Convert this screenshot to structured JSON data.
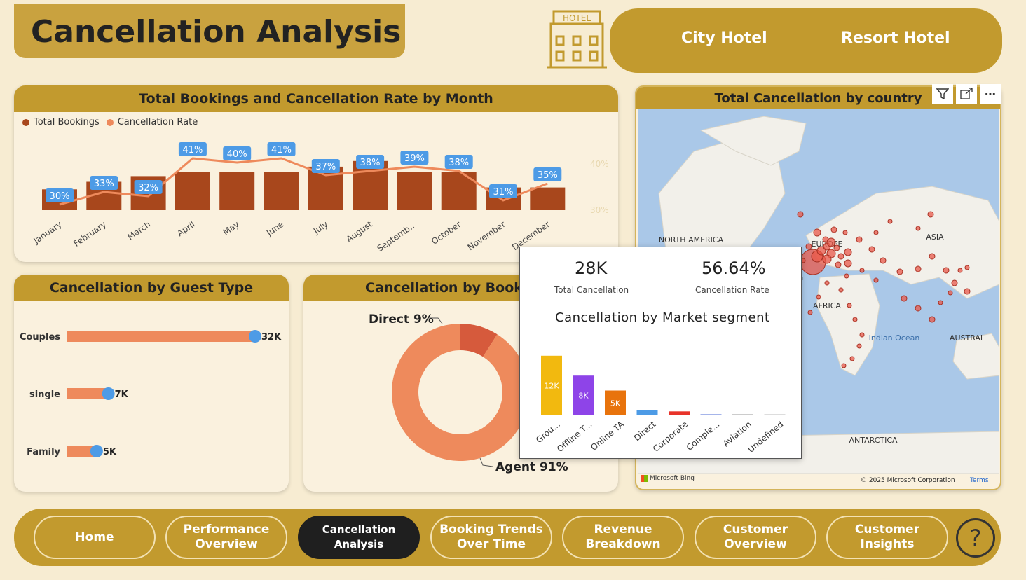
{
  "header": {
    "title": "Cancellation Analysis",
    "hotels": [
      "City Hotel",
      "Resort Hotel"
    ],
    "hotel_icon_label": "HOTEL"
  },
  "monthly_chart": {
    "title": "Total Bookings and Cancellation Rate by Month",
    "legend": [
      "Total Bookings",
      "Cancellation Rate"
    ],
    "right_ticks": [
      "40%",
      "30%"
    ]
  },
  "chart_data": [
    {
      "type": "bar",
      "title": "Total Bookings and Cancellation Rate by Month",
      "categories": [
        "January",
        "February",
        "March",
        "April",
        "May",
        "June",
        "July",
        "August",
        "Septemb...",
        "October",
        "November",
        "December"
      ],
      "series": [
        {
          "name": "Total Bookings",
          "values": [
            0.55,
            0.75,
            0.9,
            1.0,
            1.0,
            1.0,
            1.15,
            1.3,
            1.0,
            1.0,
            0.6,
            0.6
          ]
        },
        {
          "name": "Cancellation Rate",
          "values": [
            30,
            33,
            32,
            41,
            40,
            41,
            37,
            38,
            39,
            38,
            31,
            35
          ],
          "labels": [
            "30%",
            "33%",
            "32%",
            "41%",
            "40%",
            "41%",
            "37%",
            "38%",
            "39%",
            "38%",
            "31%",
            "35%"
          ]
        }
      ]
    },
    {
      "type": "bar",
      "title": "Cancellation by Guest Type",
      "categories": [
        "Couples",
        "single",
        "Family"
      ],
      "values": [
        32,
        7,
        5
      ],
      "labels": [
        "32K",
        "7K",
        "5K"
      ]
    },
    {
      "type": "pie",
      "title": "Cancellation by Booking",
      "categories": [
        "Direct",
        "Agent"
      ],
      "values": [
        9,
        91
      ],
      "labels": [
        "Direct 9%",
        "Agent 91%"
      ]
    },
    {
      "type": "bar",
      "title": "Cancellation by Market segment",
      "categories": [
        "Grou...",
        "Offline T...",
        "Online TA",
        "Direct",
        "Corporate",
        "Comple...",
        "Aviation",
        "Undefined"
      ],
      "values": [
        12,
        8,
        5,
        1.0,
        0.8,
        0.2,
        0.1,
        0.05
      ],
      "labels": [
        "12K",
        "8K",
        "5K",
        "",
        "",
        "",
        "",
        ""
      ],
      "colors": [
        "#f2b90f",
        "#8e44e8",
        "#e8730c",
        "#4d9be6",
        "#e8332a",
        "#4d6bd6",
        "#999999",
        "#bbbbbb"
      ]
    }
  ],
  "guest_chart": {
    "title": "Cancellation by Guest Type"
  },
  "booking_chart": {
    "title": "Cancellation by Booking"
  },
  "map": {
    "title": "Total Cancellation by country",
    "labels": [
      "NORTH AMERICA",
      "ASIA",
      "EUROPE",
      "AFRICA",
      "Indian Ocean",
      "AUSTRAL",
      "ANTARCTICA",
      "ICA",
      "ean"
    ],
    "footer_left": "Microsoft Bing",
    "footer_right": "© 2025 Microsoft Corporation",
    "terms": "Terms"
  },
  "tooltip": {
    "kpi1_value": "28K",
    "kpi1_label": "Total Cancellation",
    "kpi2_value": "56.64%",
    "kpi2_label": "Cancellation Rate",
    "title": "Cancellation by Market segment"
  },
  "nav": {
    "items": [
      {
        "label": "Home"
      },
      {
        "label": "Performance Overview"
      },
      {
        "label": "Cancellation Analysis"
      },
      {
        "label": "Booking Trends Over Time"
      },
      {
        "label": "Revenue Breakdown"
      },
      {
        "label": "Customer Overview"
      },
      {
        "label": "Customer Insights"
      }
    ],
    "help": "?"
  },
  "colors": {
    "gold": "#c29a2e",
    "bar": "#a8471c",
    "line": "#ee8a5c",
    "accent_blue": "#4d9be6"
  }
}
